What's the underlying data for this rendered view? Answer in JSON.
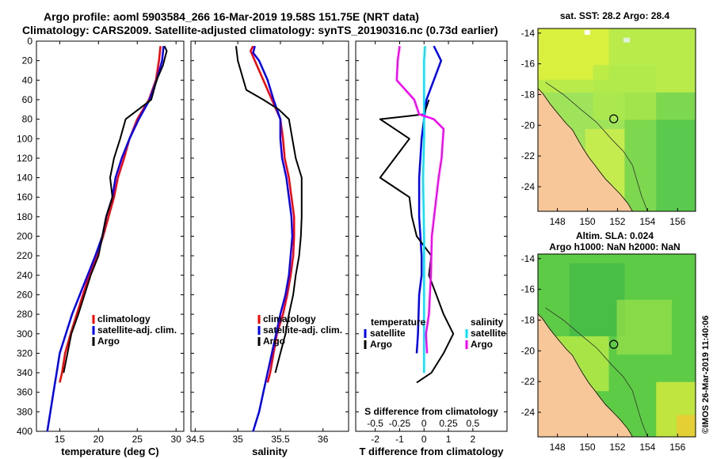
{
  "header": {
    "title_line1": "Argo profile: aoml 5903584_266 16-Mar-2019 19.58S 151.75E (NRT data)",
    "title_line2": "Climatology: CARS2009. Satellite-adjusted climatology: synTS_20190316.nc (0.73d earlier)"
  },
  "colors": {
    "red": "#ff0000",
    "blue": "#0000ff",
    "black": "#000000",
    "magenta": "#ff00ff",
    "cyan": "#00e5ff",
    "land": "#f7c79a"
  },
  "depth_ticks": [
    0,
    20,
    40,
    60,
    80,
    100,
    120,
    140,
    160,
    180,
    200,
    220,
    240,
    260,
    280,
    300,
    320,
    340,
    360,
    380,
    400
  ],
  "chart_data": [
    {
      "type": "line",
      "title": "",
      "xlabel": "temperature (deg C)",
      "ylabel": "depth",
      "xlim": [
        12,
        31
      ],
      "ylim": [
        400,
        0
      ],
      "xticks": [
        15,
        20,
        25,
        30
      ],
      "legend": [
        "climatology",
        "satellite-adj. clim.",
        "Argo"
      ],
      "series": [
        {
          "name": "climatology",
          "color": "red",
          "points": [
            [
              28,
              5
            ],
            [
              27.8,
              20
            ],
            [
              27.4,
              40
            ],
            [
              26.5,
              60
            ],
            [
              25,
              80
            ],
            [
              24,
              100
            ],
            [
              23.3,
              120
            ],
            [
              22.5,
              140
            ],
            [
              22,
              160
            ],
            [
              21.3,
              180
            ],
            [
              20.6,
              200
            ],
            [
              19.8,
              220
            ],
            [
              18.8,
              240
            ],
            [
              18,
              260
            ],
            [
              17.2,
              280
            ],
            [
              16.4,
              300
            ],
            [
              15.7,
              320
            ],
            [
              15.3,
              340
            ],
            [
              15,
              350
            ]
          ]
        },
        {
          "name": "satellite-adj. clim.",
          "color": "blue",
          "points": [
            [
              28.4,
              5
            ],
            [
              28.2,
              20
            ],
            [
              27.5,
              40
            ],
            [
              26.6,
              60
            ],
            [
              25.2,
              80
            ],
            [
              24,
              100
            ],
            [
              23,
              120
            ],
            [
              22.2,
              140
            ],
            [
              21.8,
              160
            ],
            [
              21,
              180
            ],
            [
              20.5,
              200
            ],
            [
              19.6,
              220
            ],
            [
              18.6,
              240
            ],
            [
              17.6,
              260
            ],
            [
              16.6,
              280
            ],
            [
              15.8,
              300
            ],
            [
              15,
              320
            ],
            [
              14.6,
              340
            ],
            [
              14.2,
              360
            ],
            [
              13.8,
              380
            ],
            [
              13.4,
              400
            ]
          ]
        },
        {
          "name": "Argo",
          "color": "black",
          "points": [
            [
              28.5,
              5
            ],
            [
              28.8,
              10
            ],
            [
              28.3,
              25
            ],
            [
              27.5,
              40
            ],
            [
              26.8,
              60
            ],
            [
              23.5,
              80
            ],
            [
              22.8,
              100
            ],
            [
              22,
              120
            ],
            [
              21.5,
              140
            ],
            [
              21.8,
              160
            ],
            [
              21,
              180
            ],
            [
              20.5,
              200
            ],
            [
              20,
              220
            ],
            [
              19,
              240
            ],
            [
              18.2,
              260
            ],
            [
              17.4,
              280
            ],
            [
              16.5,
              300
            ],
            [
              16,
              320
            ],
            [
              15.5,
              340
            ]
          ]
        }
      ]
    },
    {
      "type": "line",
      "title": "",
      "xlabel": "salinity",
      "ylabel": "depth",
      "xlim": [
        34.45,
        36.3
      ],
      "ylim": [
        400,
        0
      ],
      "xticks": [
        34.5,
        35,
        35.5,
        36
      ],
      "xticklabels": [
        "34.5",
        "35",
        "35.5",
        "36"
      ],
      "legend": [
        "climatology",
        "satellite-adj. clim.",
        "Argo"
      ],
      "series": [
        {
          "name": "climatology",
          "color": "red",
          "points": [
            [
              35.18,
              5
            ],
            [
              35.15,
              10
            ],
            [
              35.2,
              20
            ],
            [
              35.3,
              40
            ],
            [
              35.4,
              60
            ],
            [
              35.5,
              80
            ],
            [
              35.53,
              100
            ],
            [
              35.55,
              120
            ],
            [
              35.6,
              140
            ],
            [
              35.63,
              160
            ],
            [
              35.66,
              180
            ],
            [
              35.66,
              200
            ],
            [
              35.65,
              220
            ],
            [
              35.62,
              240
            ],
            [
              35.58,
              260
            ],
            [
              35.53,
              280
            ],
            [
              35.46,
              300
            ],
            [
              35.42,
              320
            ],
            [
              35.38,
              340
            ],
            [
              35.35,
              350
            ]
          ]
        },
        {
          "name": "satellite-adj. clim.",
          "color": "blue",
          "points": [
            [
              35.2,
              5
            ],
            [
              35.18,
              12
            ],
            [
              35.25,
              20
            ],
            [
              35.35,
              40
            ],
            [
              35.42,
              60
            ],
            [
              35.5,
              80
            ],
            [
              35.5,
              100
            ],
            [
              35.52,
              120
            ],
            [
              35.57,
              140
            ],
            [
              35.6,
              160
            ],
            [
              35.63,
              180
            ],
            [
              35.64,
              200
            ],
            [
              35.62,
              220
            ],
            [
              35.6,
              240
            ],
            [
              35.56,
              260
            ],
            [
              35.5,
              280
            ],
            [
              35.45,
              300
            ],
            [
              35.4,
              320
            ],
            [
              35.35,
              340
            ],
            [
              35.3,
              360
            ],
            [
              35.25,
              380
            ],
            [
              35.18,
              400
            ]
          ]
        },
        {
          "name": "Argo",
          "color": "black",
          "points": [
            [
              34.98,
              5
            ],
            [
              35,
              20
            ],
            [
              35.1,
              50
            ],
            [
              35.3,
              60
            ],
            [
              35.48,
              70
            ],
            [
              35.6,
              80
            ],
            [
              35.64,
              100
            ],
            [
              35.68,
              120
            ],
            [
              35.75,
              140
            ],
            [
              35.75,
              160
            ],
            [
              35.75,
              180
            ],
            [
              35.74,
              200
            ],
            [
              35.72,
              220
            ],
            [
              35.68,
              240
            ],
            [
              35.65,
              260
            ],
            [
              35.6,
              280
            ],
            [
              35.56,
              300
            ],
            [
              35.5,
              320
            ],
            [
              35.44,
              340
            ]
          ]
        }
      ]
    },
    {
      "type": "line",
      "title": "",
      "xlabel": "T difference from climatology",
      "x2label": "S difference from climatology",
      "ylabel": "depth",
      "xlim": [
        -2.8,
        3.4
      ],
      "ylim": [
        400,
        0
      ],
      "xticks": [
        -2,
        -1,
        0,
        1,
        2
      ],
      "x2lim": [
        -0.7,
        0.85
      ],
      "x2ticks": [
        -0.5,
        -0.25,
        0,
        0.25,
        0.5
      ],
      "x2ticklabels": [
        "-0.5",
        "-0.25",
        "0",
        "0.25",
        "0.5"
      ],
      "legend_left_title": "temperature",
      "legend_right_title": "salinity",
      "legend_left": [
        "satellite",
        "Argo"
      ],
      "legend_right": [
        "satellite",
        "Argo"
      ],
      "series": [
        {
          "name": "temperature satellite",
          "axis": "T",
          "color": "blue",
          "points": [
            [
              0.4,
              5
            ],
            [
              0.5,
              10
            ],
            [
              0.7,
              20
            ],
            [
              0.4,
              40
            ],
            [
              0.1,
              60
            ],
            [
              0,
              80
            ],
            [
              -0.1,
              100
            ],
            [
              -0.2,
              140
            ],
            [
              -0.2,
              180
            ],
            [
              -0.1,
              220
            ],
            [
              -0.1,
              240
            ],
            [
              -0.2,
              260
            ],
            [
              -0.25,
              300
            ],
            [
              -0.3,
              320
            ]
          ]
        },
        {
          "name": "temperature Argo",
          "axis": "T",
          "color": "black",
          "points": [
            [
              0.2,
              60
            ],
            [
              0,
              75
            ],
            [
              -1.8,
              80
            ],
            [
              -0.6,
              100
            ],
            [
              -1.2,
              120
            ],
            [
              -1.8,
              140
            ],
            [
              -0.6,
              160
            ],
            [
              -0.5,
              180
            ],
            [
              -0.3,
              200
            ],
            [
              0.3,
              220
            ],
            [
              0.2,
              240
            ],
            [
              0.5,
              260
            ],
            [
              0.8,
              280
            ],
            [
              1.2,
              300
            ],
            [
              0.8,
              320
            ],
            [
              0.3,
              340
            ],
            [
              -0.3,
              350
            ]
          ]
        },
        {
          "name": "salinity satellite",
          "axis": "S",
          "color": "cyan",
          "points": [
            [
              0.01,
              5
            ],
            [
              0,
              20
            ],
            [
              0,
              60
            ],
            [
              0,
              100
            ],
            [
              -0.01,
              140
            ],
            [
              0,
              200
            ],
            [
              0,
              240
            ],
            [
              0,
              300
            ],
            [
              0,
              340
            ]
          ]
        },
        {
          "name": "salinity Argo",
          "axis": "S",
          "color": "magenta",
          "points": [
            [
              -0.25,
              5
            ],
            [
              -0.27,
              20
            ],
            [
              -0.28,
              40
            ],
            [
              -0.1,
              60
            ],
            [
              -0.05,
              75
            ],
            [
              0.1,
              80
            ],
            [
              0.2,
              90
            ],
            [
              0.18,
              120
            ],
            [
              0.15,
              140
            ],
            [
              0.08,
              200
            ],
            [
              0.07,
              240
            ],
            [
              0.05,
              280
            ],
            [
              0.02,
              300
            ],
            [
              0.03,
              320
            ]
          ]
        }
      ]
    },
    {
      "type": "heatmap",
      "title": "sat. SST: 28.2 Argo: 28.4",
      "xlabel": "",
      "ylabel": "",
      "xlim": [
        146.7,
        157.2
      ],
      "ylim": [
        -25.6,
        -13.7
      ],
      "xticks": [
        148,
        150,
        152,
        154,
        156
      ],
      "yticks": [
        -14,
        -16,
        -18,
        -20,
        -22,
        -24
      ],
      "argo_position": [
        151.75,
        -19.58
      ]
    },
    {
      "type": "heatmap",
      "title": "Altim. SLA: 0.024",
      "subtitle": "Argo h1000: NaN h2000: NaN",
      "xlabel": "",
      "ylabel": "",
      "xlim": [
        146.7,
        157.2
      ],
      "ylim": [
        -25.6,
        -13.7
      ],
      "xticks": [
        148,
        150,
        152,
        154,
        156
      ],
      "yticks": [
        -14,
        -16,
        -18,
        -20,
        -22,
        -24
      ],
      "argo_position": [
        151.75,
        -19.58
      ]
    }
  ],
  "footer": {
    "credit": "©IMOS 26-Mar-2019 11:40:06"
  }
}
